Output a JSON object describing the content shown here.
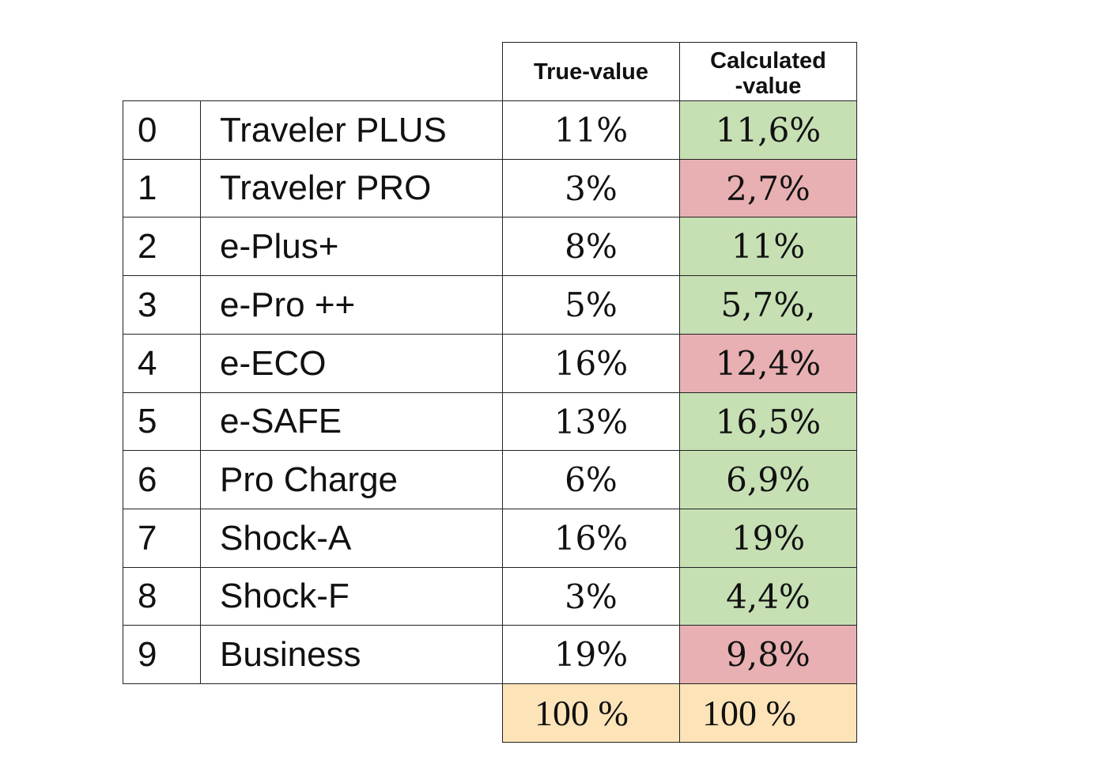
{
  "headers": {
    "true_value": "True-value",
    "calculated_line1": "Calculated",
    "calculated_line2": "-value"
  },
  "colors": {
    "good": "#c6e0b4",
    "bad": "#e8b0b2",
    "total": "#fde4b8",
    "border": "#222222"
  },
  "rows": [
    {
      "index": "0",
      "name": "Traveler PLUS",
      "true_value": "11%",
      "calculated_value": "11,6%",
      "status": "good"
    },
    {
      "index": "1",
      "name": "Traveler PRO",
      "true_value": "3%",
      "calculated_value": "2,7%",
      "status": "bad"
    },
    {
      "index": "2",
      "name": "e-Plus+",
      "true_value": "8%",
      "calculated_value": "11%",
      "status": "good"
    },
    {
      "index": "3",
      "name": "e-Pro ++",
      "true_value": "5%",
      "calculated_value": "5,7%,",
      "status": "good"
    },
    {
      "index": "4",
      "name": "e-ECO",
      "true_value": "16%",
      "calculated_value": "12,4%",
      "status": "bad"
    },
    {
      "index": "5",
      "name": "e-SAFE",
      "true_value": "13%",
      "calculated_value": "16,5%",
      "status": "good"
    },
    {
      "index": "6",
      "name": "Pro Charge",
      "true_value": "6%",
      "calculated_value": "6,9%",
      "status": "good"
    },
    {
      "index": "7",
      "name": "Shock-A",
      "true_value": "16%",
      "calculated_value": "19%",
      "status": "good"
    },
    {
      "index": "8",
      "name": "Shock-F",
      "true_value": "3%",
      "calculated_value": "4,4%",
      "status": "good"
    },
    {
      "index": "9",
      "name": "Business",
      "true_value": "19%",
      "calculated_value": "9,8%",
      "status": "bad"
    }
  ],
  "totals": {
    "true_value": "100 %",
    "calculated_value": "100 %"
  }
}
